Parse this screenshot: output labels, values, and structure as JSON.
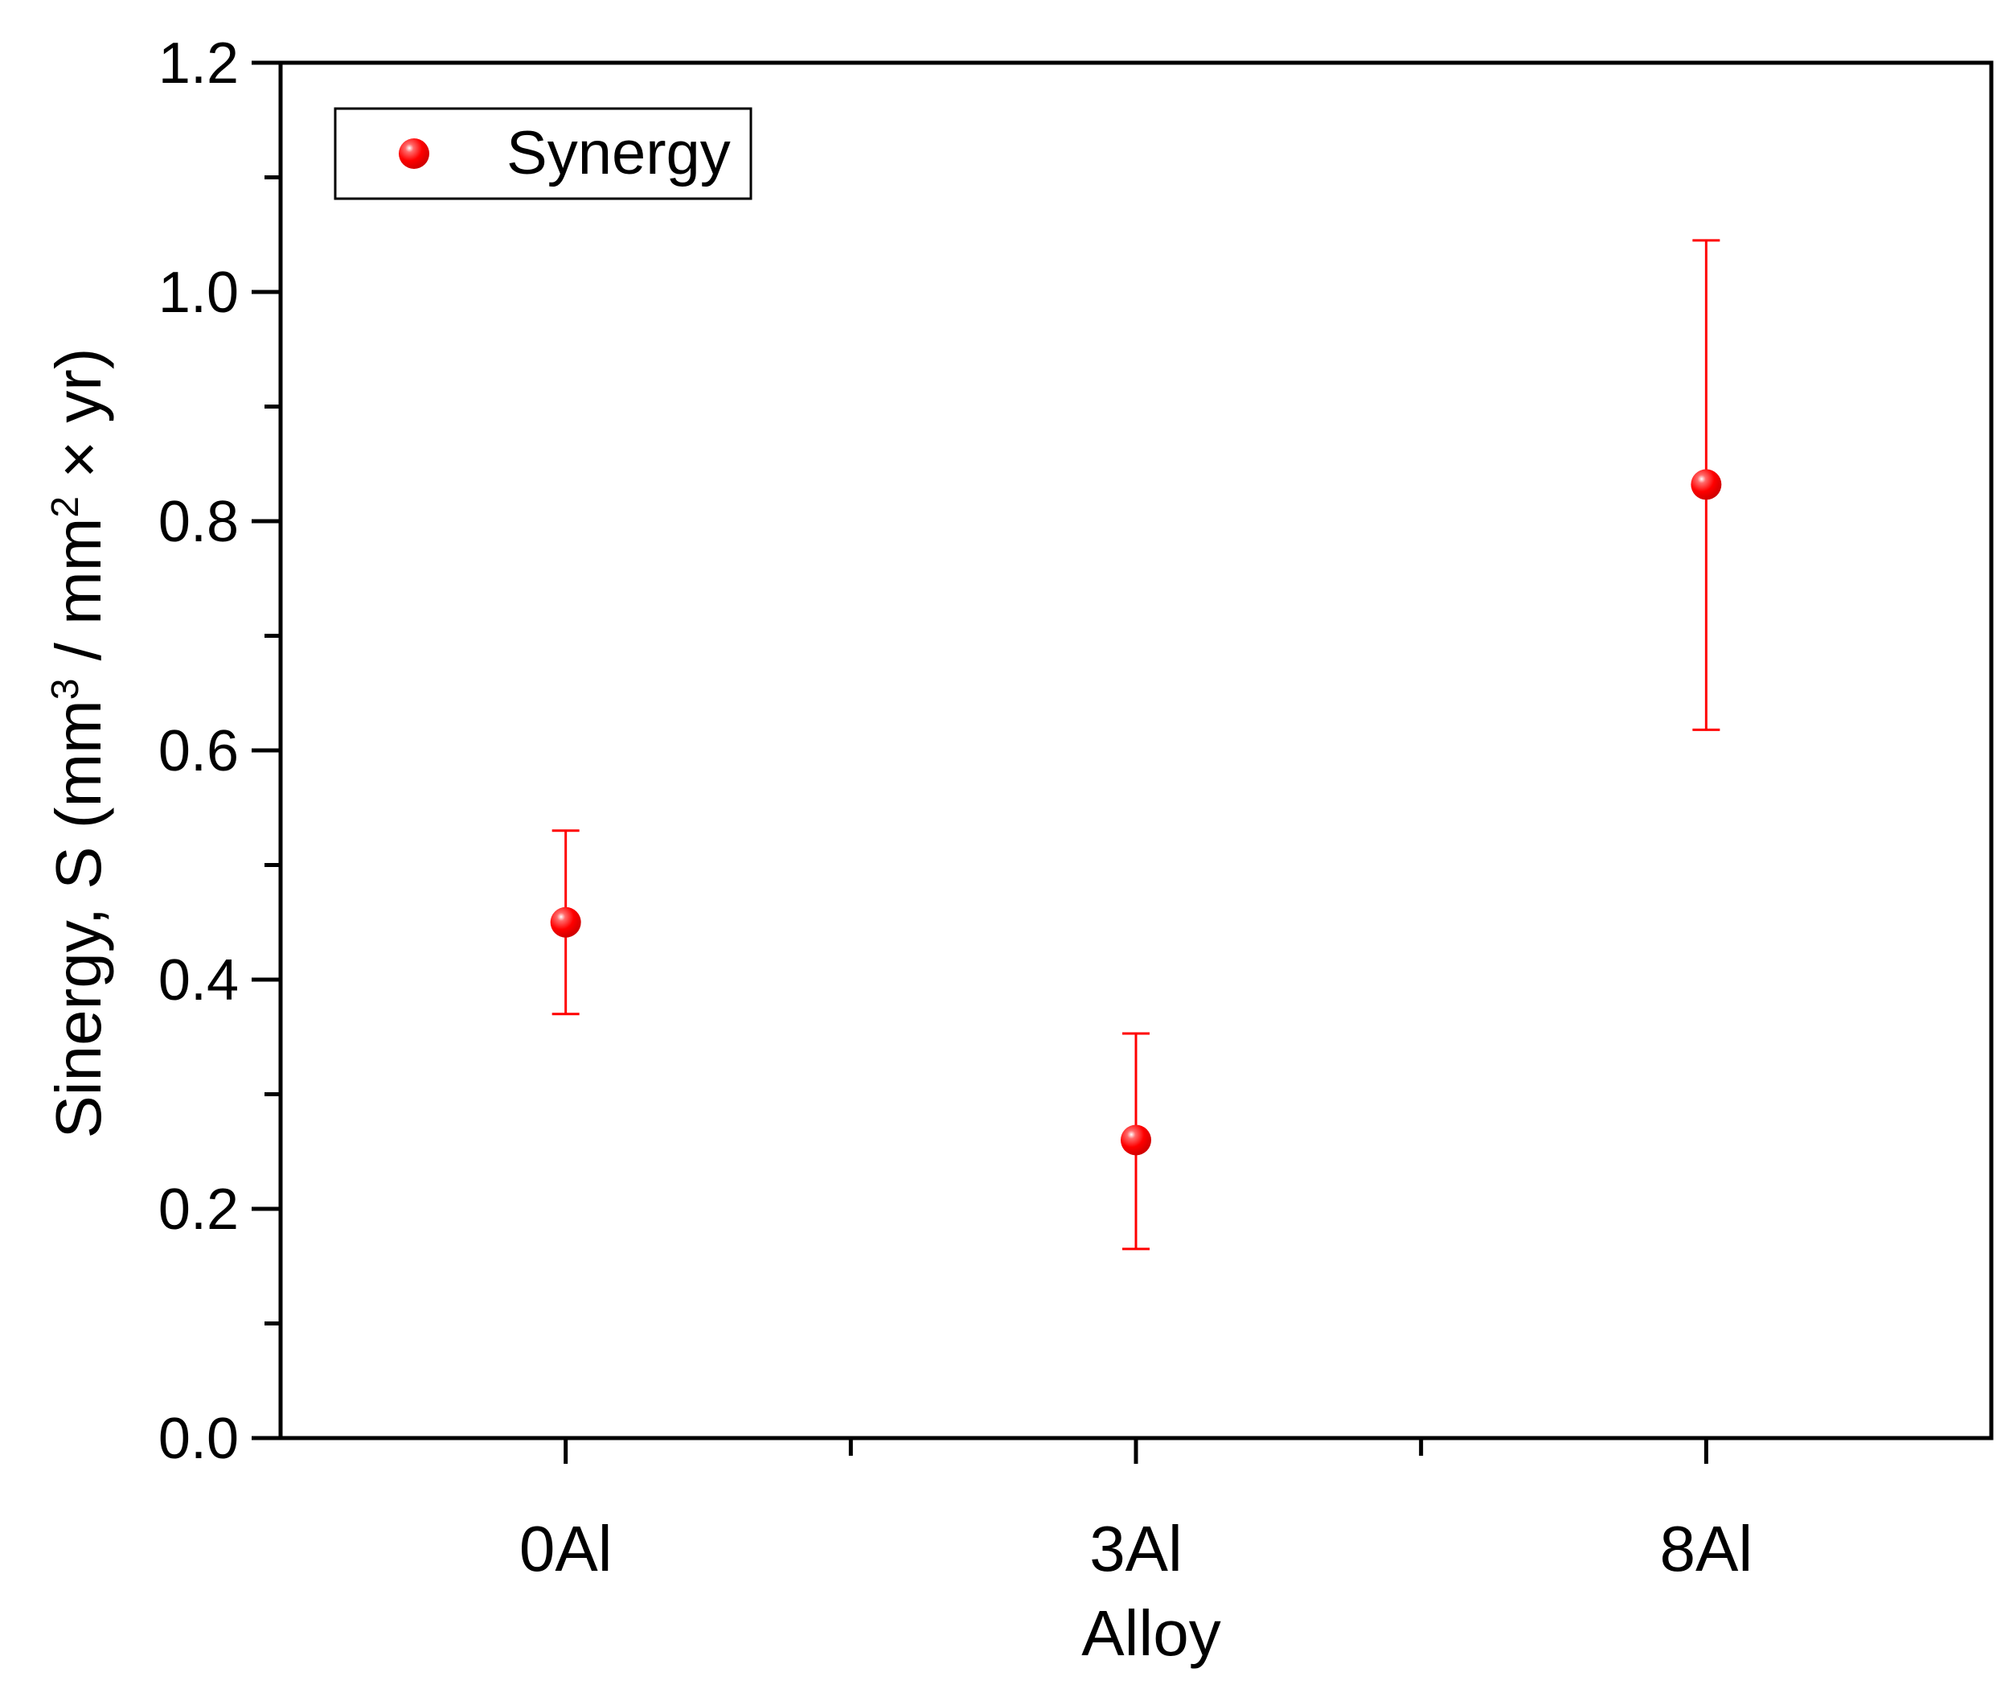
{
  "chart_data": {
    "type": "scatter",
    "title": "",
    "xlabel": "Alloy",
    "ylabel": {
      "prefix": "Sinergy, S (mm",
      "sup1": "3",
      "middle": " / mm",
      "sup2": "2",
      "suffix": " × yr)"
    },
    "categories": [
      "0Al",
      "3Al",
      "8Al"
    ],
    "ylim": [
      0,
      1.2
    ],
    "yticks": [
      "0.0",
      "0.2",
      "0.4",
      "0.6",
      "0.8",
      "1.0",
      "1.2"
    ],
    "grid": false,
    "legend": {
      "position": "top-left",
      "entries": [
        "Synergy"
      ]
    },
    "series": [
      {
        "name": "Synergy",
        "color": "#ff0000",
        "marker": "sphere",
        "points": [
          {
            "category": "0Al",
            "y": 0.45,
            "err_low": 0.37,
            "err_high": 0.53
          },
          {
            "category": "3Al",
            "y": 0.26,
            "err_low": 0.165,
            "err_high": 0.353
          },
          {
            "category": "8Al",
            "y": 0.832,
            "err_low": 0.618,
            "err_high": 1.045
          }
        ]
      }
    ]
  }
}
